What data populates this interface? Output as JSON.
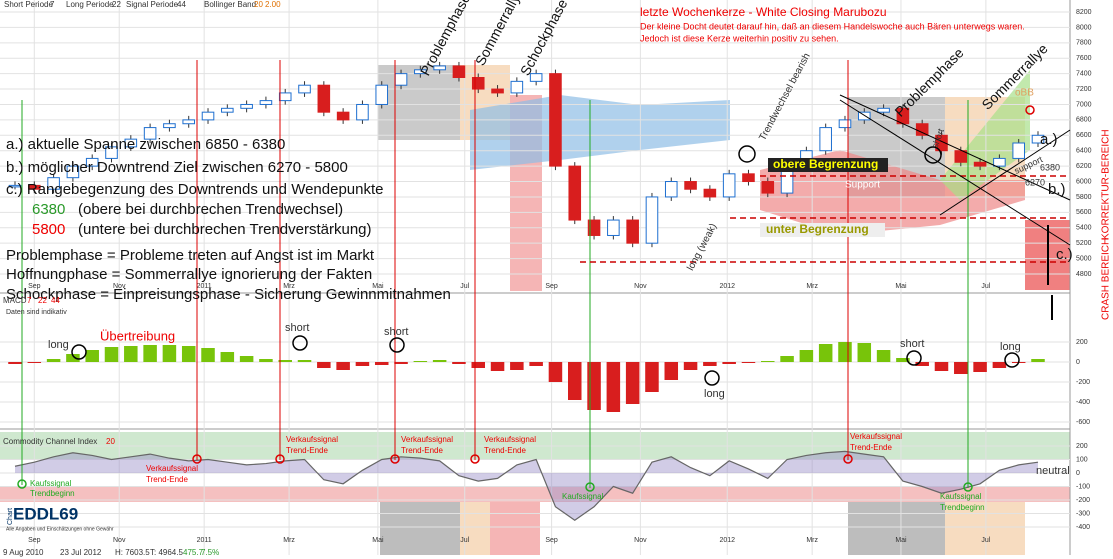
{
  "header": {
    "short_label": "Short Periode",
    "short": 7,
    "long_label": "Long Periode",
    "long": 22,
    "signal_label": "Signal Periode",
    "signal": 44,
    "bollinger_label": "Bollinger Band",
    "bollinger_period": 20,
    "bollinger_dev": "2.00"
  },
  "annotations": {
    "candle_title": "letzte Wochenkerze - White Closing Marubozu",
    "candle_note_1": "Der kleine Docht deutet darauf hin, daß an diesem Handelswoche auch Bären unterwegs waren.",
    "candle_note_2": "Jedoch ist diese Kerze weiterhin positiv zu sehen.",
    "a": "a.) aktuelle  Spanne zwischen 6850 - 6380",
    "b": "b.) möglicher Downtrend Ziel zwischen 6270 - 5800",
    "c": "c.) Rangebegenzung des Downtrends und Wendepunkte",
    "level_upper": "6380",
    "level_upper_text": "(obere bei durchbrechen Trendwechsel)",
    "level_lower": "5800",
    "level_lower_text": "(untere bei durchbrechen Trendverstärkung)",
    "def_1": "Problemphase = Probleme treten auf Angst ist im Markt",
    "def_2": "Hoffnungphase = Sommerrallye ignorierung der Fakten",
    "def_3": "Schockphase = Einpreisungsphase - Sicherung Gewinnmitnahmen",
    "data_note": "Daten sind indikativ",
    "phase_1": "Problemphase",
    "phase_2": "Sommerrallye",
    "phase_3": "Schockphase",
    "trend_change": "Trendwechsel bearish",
    "phase_4": "Problemphase",
    "phase_5": "Sommerrallye",
    "long_weak": "long (weak)",
    "short_price": "short",
    "upper_bound": "obere Begrenzung",
    "lower_bound": "unter Begrenzung",
    "support_1": "Support",
    "support_2": "support",
    "label_6380": "6380",
    "label_6270": "6270",
    "mark_a": "a.)",
    "mark_b": "b.)",
    "mark_c": "c.)",
    "obb": "oBB",
    "korrektur": "KORREKTUR-BEREICH",
    "crash": "CRASH BEREICH"
  },
  "macd_panel": {
    "label": "MACD",
    "exaggeration": "Übertreibung",
    "signals": [
      "long",
      "short",
      "short",
      "long",
      "short",
      "long"
    ]
  },
  "cci_panel": {
    "label": "Commodity Channel Index",
    "period": 20,
    "buy_start": [
      "Kaufssignal",
      "Trendbeginn"
    ],
    "sell_end": [
      "Verkaufssignal",
      "Trend-Ende"
    ],
    "buy": "Kaufssignal",
    "neutral": "neutral"
  },
  "footer": {
    "logo_small": "Chart",
    "logo": "EDDL69",
    "disclaimer": "Alle Angaben und Einschätzungen ohne Gewähr",
    "start": "9 Aug 2010",
    "end": "23 Jul 2012",
    "high": "H: 7603.5",
    "low": "T: 4964.5",
    "change": "475.7",
    "pct": "7.5%"
  },
  "chart_data": [
    {
      "type": "candlestick",
      "colors": {
        "up": "#1e6fd0",
        "down": "#d81e1e"
      },
      "xlim": [
        0,
        53
      ],
      "ylim": [
        4800,
        8200
      ],
      "xticks": [
        {
          "value": 1,
          "label": "Sep"
        },
        {
          "value": 5.4,
          "label": "Nov"
        },
        {
          "value": 9.8,
          "label": "2011"
        },
        {
          "value": 14.2,
          "label": "Mrz"
        },
        {
          "value": 18.8,
          "label": "Mai"
        },
        {
          "value": 23.3,
          "label": "Jul"
        },
        {
          "value": 27.8,
          "label": "Sep"
        },
        {
          "value": 32.4,
          "label": "Nov"
        },
        {
          "value": 36.9,
          "label": "2012"
        },
        {
          "value": 41.3,
          "label": "Mrz"
        },
        {
          "value": 45.9,
          "label": "Mai"
        },
        {
          "value": 50.3,
          "label": "Jul"
        }
      ],
      "yticks": [
        8200,
        8000,
        7800,
        7600,
        7400,
        7200,
        7000,
        6800,
        6600,
        6400,
        6200,
        6000,
        5800,
        5600,
        5400,
        5200,
        5000,
        4800
      ],
      "series": [
        {
          "values": [
            5950,
            5900,
            6050,
            6200,
            6300,
            6450,
            6550,
            6700,
            6750,
            6800,
            6900,
            6950,
            7000,
            7050,
            7150,
            7250,
            6900,
            6800,
            7000,
            7250,
            7400,
            7450,
            7500,
            7350,
            7200,
            7150,
            7300,
            7400,
            6200,
            5500,
            5300,
            5500,
            5200,
            5800,
            6000,
            5900,
            5800,
            6100,
            6000,
            5850,
            6200,
            6400,
            6700,
            6800,
            6900,
            6950,
            6750,
            6600,
            6400,
            6250,
            6200,
            6300,
            6500,
            6600
          ]
        }
      ]
    },
    {
      "type": "bar",
      "colors": {
        "up": "#78c40a",
        "down": "#d81e1e"
      },
      "line_color": "#6a6ae0",
      "xlim": [
        0,
        53
      ],
      "ylim": [
        -600,
        400
      ],
      "yticks": [
        200,
        0,
        -200,
        -400,
        -600
      ],
      "series": [
        {
          "values": [
            -20,
            -10,
            30,
            80,
            120,
            150,
            160,
            170,
            170,
            160,
            140,
            100,
            60,
            30,
            20,
            20,
            -60,
            -80,
            -40,
            -30,
            -20,
            10,
            20,
            -20,
            -60,
            -90,
            -80,
            -40,
            -200,
            -380,
            -480,
            -500,
            -420,
            -300,
            -180,
            -80,
            -40,
            -20,
            -10,
            10,
            60,
            120,
            180,
            200,
            190,
            120,
            40,
            -40,
            -90,
            -120,
            -100,
            -60,
            -10,
            30
          ]
        }
      ]
    },
    {
      "type": "line",
      "colors": {
        "line": "#666",
        "fill": "#9a8fc8"
      },
      "xlim": [
        0,
        53
      ],
      "ylim": [
        -600,
        300
      ],
      "yticks": [
        200,
        100,
        0,
        -100,
        -200,
        -300,
        -400
      ],
      "series": [
        {
          "values": [
            50,
            80,
            120,
            150,
            130,
            100,
            120,
            140,
            110,
            90,
            100,
            80,
            60,
            70,
            90,
            100,
            -50,
            -80,
            20,
            100,
            120,
            110,
            90,
            -20,
            -60,
            -40,
            60,
            100,
            -250,
            -350,
            -250,
            -100,
            -150,
            80,
            120,
            40,
            -20,
            90,
            30,
            -40,
            100,
            130,
            150,
            160,
            140,
            120,
            -60,
            -100,
            -150,
            -120,
            -80,
            20,
            60,
            80
          ]
        }
      ]
    }
  ]
}
